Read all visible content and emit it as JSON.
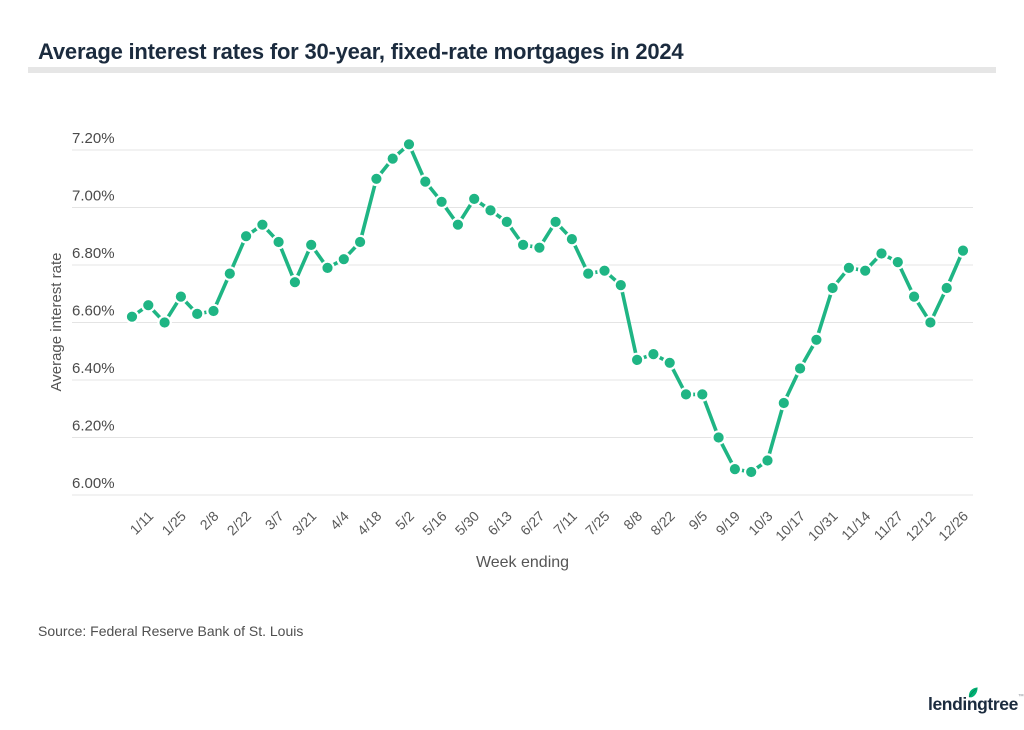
{
  "header": {
    "title": "Average interest rates for 30-year, fixed-rate mortgages in 2024"
  },
  "chart_data": {
    "type": "line",
    "title": "Average interest rates for 30-year, fixed-rate mortgages in 2024",
    "xlabel": "Week ending",
    "ylabel": "Average interest rate",
    "x": [
      "1/4",
      "1/11",
      "1/18",
      "1/25",
      "2/1",
      "2/8",
      "2/15",
      "2/22",
      "2/29",
      "3/7",
      "3/14",
      "3/21",
      "3/28",
      "4/4",
      "4/11",
      "4/18",
      "4/25",
      "5/2",
      "5/9",
      "5/16",
      "5/23",
      "5/30",
      "6/6",
      "6/13",
      "6/20",
      "6/27",
      "7/3",
      "7/11",
      "7/18",
      "7/25",
      "8/1",
      "8/8",
      "8/15",
      "8/22",
      "8/29",
      "9/5",
      "9/12",
      "9/19",
      "9/26",
      "10/3",
      "10/10",
      "10/17",
      "10/24",
      "10/31",
      "11/7",
      "11/14",
      "11/21",
      "11/27",
      "12/5",
      "12/12",
      "12/19",
      "12/26"
    ],
    "values": [
      6.62,
      6.66,
      6.6,
      6.69,
      6.63,
      6.64,
      6.77,
      6.9,
      6.94,
      6.88,
      6.74,
      6.87,
      6.79,
      6.82,
      6.88,
      7.1,
      7.17,
      7.22,
      7.09,
      7.02,
      6.94,
      7.03,
      6.99,
      6.95,
      6.87,
      6.86,
      6.95,
      6.89,
      6.77,
      6.78,
      6.73,
      6.47,
      6.49,
      6.46,
      6.35,
      6.35,
      6.2,
      6.09,
      6.08,
      6.12,
      6.32,
      6.44,
      6.54,
      6.72,
      6.79,
      6.78,
      6.84,
      6.81,
      6.69,
      6.6,
      6.72,
      6.85
    ],
    "x_tick_labels": [
      "1/11",
      "1/25",
      "2/8",
      "2/22",
      "3/7",
      "3/21",
      "4/4",
      "4/18",
      "5/2",
      "5/16",
      "5/30",
      "6/13",
      "6/27",
      "7/11",
      "7/25",
      "8/8",
      "8/22",
      "9/5",
      "9/19",
      "10/3",
      "10/17",
      "10/31",
      "11/14",
      "11/27",
      "12/12",
      "12/26"
    ],
    "x_tick_start_index": 1,
    "x_tick_every": 2,
    "y_ticks": [
      {
        "label": "6.00%",
        "value": 6.0
      },
      {
        "label": "6.20%",
        "value": 6.2
      },
      {
        "label": "6.40%",
        "value": 6.4
      },
      {
        "label": "6.60%",
        "value": 6.6
      },
      {
        "label": "6.80%",
        "value": 6.8
      },
      {
        "label": "7.00%",
        "value": 7.0
      },
      {
        "label": "7.20%",
        "value": 7.2
      }
    ],
    "ylim": [
      6.0,
      7.2
    ],
    "grid": true,
    "legend": "none",
    "line_color": "#1fb584",
    "grid_color": "#e4e4e4",
    "tick_label_color": "#4a4a4a",
    "x_tick_label_color": "#595959"
  },
  "source": {
    "text": "Source: Federal Reserve Bank of St. Louis"
  },
  "branding": {
    "logo_text": "lendingtree",
    "logo_mark": "™",
    "leaf_color": "#00b274",
    "navy_color": "#1b2b3e"
  }
}
